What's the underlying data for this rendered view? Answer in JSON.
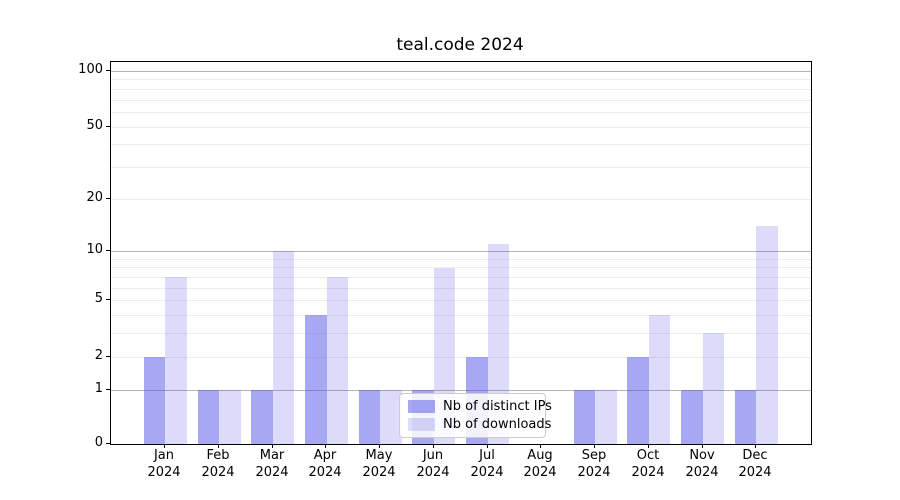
{
  "chart_data": {
    "type": "bar",
    "title": "teal.code 2024",
    "yscale": "log1p",
    "categories": [
      "Jan 2024",
      "Feb 2024",
      "Mar 2024",
      "Apr 2024",
      "May 2024",
      "Jun 2024",
      "Jul 2024",
      "Aug 2024",
      "Sep 2024",
      "Oct 2024",
      "Nov 2024",
      "Dec 2024"
    ],
    "series": [
      {
        "name": "Nb of distinct IPs",
        "fill": "rgba(80,80,230,0.5)",
        "values": [
          2,
          1,
          1,
          4,
          1,
          1,
          2,
          0,
          1,
          2,
          1,
          1
        ]
      },
      {
        "name": "Nb of downloads",
        "fill": "rgba(80,80,230,0.2)",
        "values": [
          7,
          1,
          10,
          7,
          1,
          8,
          11,
          0,
          1,
          4,
          3,
          14
        ]
      }
    ],
    "y_tick_labels": [
      0,
      1,
      2,
      5,
      10,
      20,
      50,
      100
    ],
    "y_major_gridlines": [
      1,
      10,
      100
    ],
    "y_minor_gridlines": [
      2,
      3,
      4,
      5,
      6,
      7,
      8,
      9,
      20,
      30,
      40,
      50,
      60,
      70,
      80,
      90
    ],
    "ylim": [
      0,
      113
    ],
    "xlabel": "",
    "ylabel": "",
    "grid": true,
    "legend_position": "lower-center"
  },
  "colors": {
    "bar_base": "#5050e6",
    "bar_dark_on_white": "#a8a8f3",
    "bar_light_on_white": "#dcdcf9",
    "major_grid": "#b4b4b4",
    "minor_grid": "#ececec",
    "axis": "#000000",
    "text": "#000000",
    "legend_border": "#cccccc",
    "background": "#ffffff"
  }
}
